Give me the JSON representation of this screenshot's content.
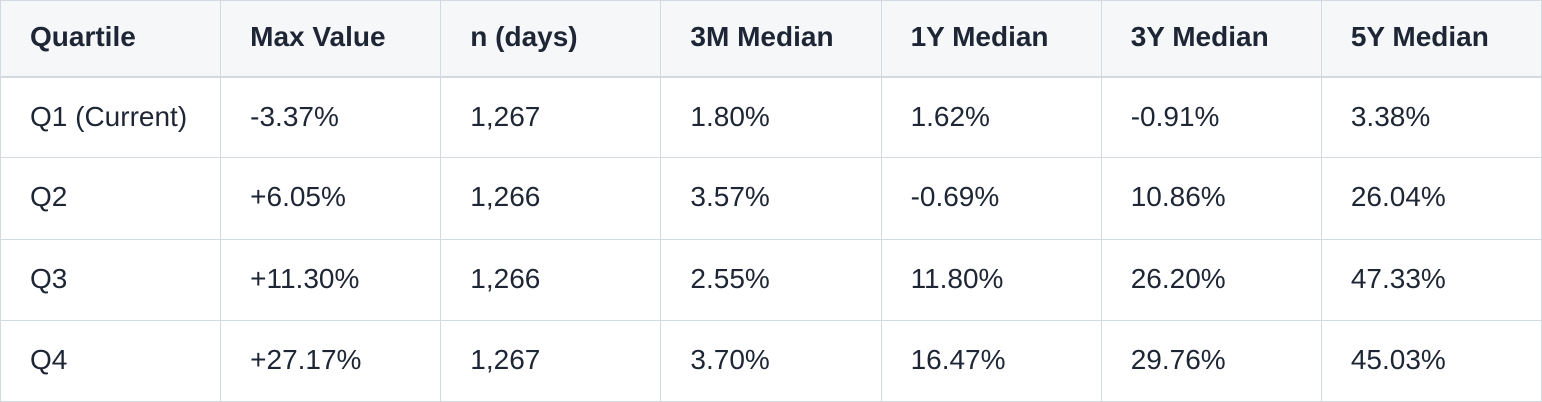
{
  "chart_data": {
    "type": "table",
    "title": "Quartile statistics table",
    "columns": [
      "Quartile",
      "Max Value",
      "n (days)",
      "3M Median",
      "1Y Median",
      "3Y Median",
      "5Y Median"
    ],
    "rows": [
      [
        "Q1 (Current)",
        "-3.37%",
        "1,267",
        "1.80%",
        "1.62%",
        "-0.91%",
        "3.38%"
      ],
      [
        "Q2",
        "+6.05%",
        "1,266",
        "3.57%",
        "-0.69%",
        "10.86%",
        "26.04%"
      ],
      [
        "Q3",
        "+11.30%",
        "1,266",
        "2.55%",
        "11.80%",
        "26.20%",
        "47.33%"
      ],
      [
        "Q4",
        "+27.17%",
        "1,267",
        "3.70%",
        "16.47%",
        "29.76%",
        "45.03%"
      ]
    ],
    "layout": {
      "grid": true,
      "header_position": "top",
      "text_align": "left"
    }
  },
  "colors": {
    "header_bg": "#f5f7f9",
    "row_bg": "#ffffff",
    "border": "#d2d9e0",
    "text": "#1e2635"
  }
}
